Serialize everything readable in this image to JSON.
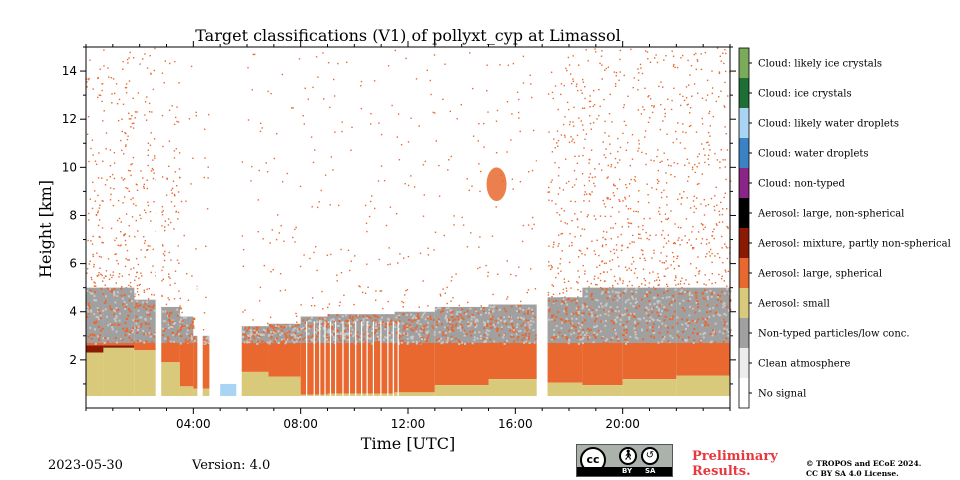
{
  "chart_data": {
    "type": "heatmap",
    "title": "Target classifications (V1) of pollyxt_cyp at Limassol",
    "xlabel": "Time [UTC]",
    "ylabel": "Height [km]",
    "xlim": [
      0,
      24
    ],
    "ylim": [
      0,
      15
    ],
    "x_ticks": [
      {
        "value": 4,
        "label": "04:00"
      },
      {
        "value": 8,
        "label": "08:00"
      },
      {
        "value": 12,
        "label": "12:00"
      },
      {
        "value": 16,
        "label": "16:00"
      },
      {
        "value": 20,
        "label": "20:00"
      }
    ],
    "y_ticks": [
      {
        "value": 2,
        "label": "2"
      },
      {
        "value": 4,
        "label": "4"
      },
      {
        "value": 6,
        "label": "6"
      },
      {
        "value": 8,
        "label": "8"
      },
      {
        "value": 10,
        "label": "10"
      },
      {
        "value": 12,
        "label": "12"
      },
      {
        "value": 14,
        "label": "14"
      }
    ],
    "classes": [
      {
        "label": "No signal",
        "color": "#ffffff"
      },
      {
        "label": "Clean atmosphere",
        "color": "#ececec"
      },
      {
        "label": "Non-typed particles/low conc.",
        "color": "#a0a0a0"
      },
      {
        "label": "Aerosol: small",
        "color": "#d9c97a"
      },
      {
        "label": "Aerosol: large, spherical",
        "color": "#e8682f"
      },
      {
        "label": "Aerosol: mixture, partly non-spherical",
        "color": "#8b1a05"
      },
      {
        "label": "Aerosol: large, non-spherical",
        "color": "#000000"
      },
      {
        "label": "Cloud: non-typed",
        "color": "#8a2487"
      },
      {
        "label": "Cloud: water droplets",
        "color": "#3b82c4"
      },
      {
        "label": "Cloud: likely water droplets",
        "color": "#a9d4f3"
      },
      {
        "label": "Cloud: ice crystals",
        "color": "#1e6f34"
      },
      {
        "label": "Cloud: likely ice crystals",
        "color": "#7bab5a"
      }
    ],
    "segments": [
      {
        "t0": 0.0,
        "t1": 0.65,
        "small_top": 2.3,
        "mix_top": 2.6,
        "nontyped_top": 5.0
      },
      {
        "t0": 0.65,
        "t1": 1.8,
        "small_top": 2.5,
        "mix_top": 2.6,
        "nontyped_top": 5.0
      },
      {
        "t0": 1.8,
        "t1": 2.6,
        "small_top": 2.4,
        "mix_top": 2.4,
        "nontyped_top": 4.5
      },
      {
        "t0": 2.8,
        "t1": 3.5,
        "small_top": 1.9,
        "mix_top": 1.9,
        "nontyped_top": 4.2
      },
      {
        "t0": 3.5,
        "t1": 4.0,
        "small_top": 0.9,
        "mix_top": 0.9,
        "nontyped_top": 3.8
      },
      {
        "t0": 4.0,
        "t1": 4.6,
        "small_top": 0.8,
        "mix_top": 0.8,
        "nontyped_top": 3.0
      },
      {
        "t0": 5.8,
        "t1": 6.8,
        "small_top": 1.5,
        "mix_top": 1.5,
        "nontyped_top": 3.4
      },
      {
        "t0": 6.8,
        "t1": 8.0,
        "small_top": 1.3,
        "mix_top": 1.3,
        "nontyped_top": 3.5
      },
      {
        "t0": 8.0,
        "t1": 9.0,
        "small_top": 0.55,
        "mix_top": 0.55,
        "nontyped_top": 3.8
      },
      {
        "t0": 9.0,
        "t1": 11.5,
        "small_top": 0.6,
        "mix_top": 0.6,
        "nontyped_top": 3.9
      },
      {
        "t0": 11.5,
        "t1": 13.0,
        "small_top": 0.65,
        "mix_top": 0.65,
        "nontyped_top": 4.0
      },
      {
        "t0": 13.0,
        "t1": 15.0,
        "small_top": 0.95,
        "mix_top": 0.95,
        "nontyped_top": 4.2
      },
      {
        "t0": 15.0,
        "t1": 16.8,
        "small_top": 1.2,
        "mix_top": 1.2,
        "nontyped_top": 4.3
      },
      {
        "t0": 17.2,
        "t1": 18.5,
        "small_top": 1.05,
        "mix_top": 1.05,
        "nontyped_top": 4.6
      },
      {
        "t0": 18.5,
        "t1": 20.0,
        "small_top": 0.95,
        "mix_top": 0.95,
        "nontyped_top": 5.0
      },
      {
        "t0": 20.0,
        "t1": 22.0,
        "small_top": 1.2,
        "mix_top": 1.2,
        "nontyped_top": 5.0
      },
      {
        "t0": 22.0,
        "t1": 24.0,
        "small_top": 1.35,
        "mix_top": 1.35,
        "nontyped_top": 5.0
      }
    ],
    "orange_layer_top": 2.7,
    "gaps_hours": [
      [
        2.6,
        2.8
      ],
      [
        4.15,
        4.35
      ],
      [
        4.6,
        5.8
      ],
      [
        16.8,
        17.2
      ]
    ],
    "cloud_feature": {
      "time": 15.3,
      "height_from": 8.6,
      "height_to": 10.0
    }
  },
  "footer": {
    "date": "2023-05-30",
    "version": "Version: 4.0",
    "preliminary": [
      "Preliminary",
      "Results."
    ],
    "copyright": [
      "© TROPOS and ECoE 2024.",
      "CC BY SA 4.0 License."
    ],
    "license_badge": {
      "logo": "cc",
      "labels": [
        "BY",
        "SA"
      ]
    }
  }
}
